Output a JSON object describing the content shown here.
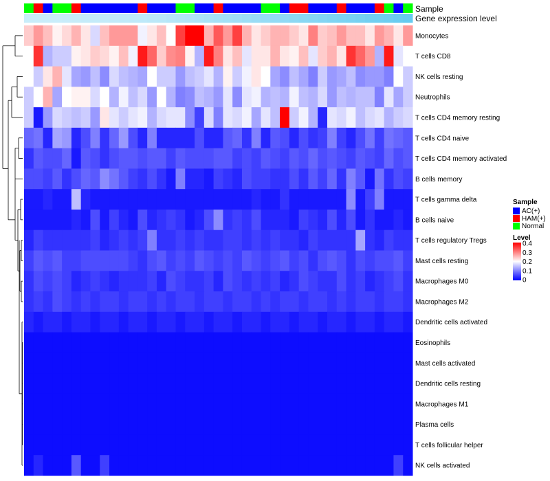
{
  "chart_data": {
    "type": "heatmap",
    "title": "",
    "annotation_tracks": [
      {
        "name": "Sample",
        "categories": [
          "Normal",
          "HAM(+)",
          "AC(+)",
          "Normal",
          "Normal",
          "HAM(+)",
          "AC(+)",
          "AC(+)",
          "AC(+)",
          "AC(+)",
          "AC(+)",
          "AC(+)",
          "HAM(+)",
          "AC(+)",
          "AC(+)",
          "AC(+)",
          "Normal",
          "Normal",
          "AC(+)",
          "AC(+)",
          "HAM(+)",
          "AC(+)",
          "AC(+)",
          "AC(+)",
          "AC(+)",
          "Normal",
          "Normal",
          "AC(+)",
          "HAM(+)",
          "HAM(+)",
          "AC(+)",
          "AC(+)",
          "AC(+)",
          "HAM(+)",
          "AC(+)",
          "AC(+)",
          "AC(+)",
          "HAM(+)",
          "Normal",
          "AC(+)",
          "Normal"
        ]
      },
      {
        "name": "Gene expression level",
        "values": [
          0.1,
          0.1,
          0.1,
          0.1,
          0.11,
          0.12,
          0.13,
          0.14,
          0.15,
          0.16,
          0.17,
          0.18,
          0.19,
          0.2,
          0.22,
          0.25,
          0.28,
          0.3,
          0.32,
          0.35,
          0.38,
          0.4,
          0.42,
          0.45,
          0.48,
          0.5,
          0.52,
          0.55,
          0.58,
          0.6,
          0.62,
          0.65,
          0.68,
          0.7,
          0.72,
          0.75,
          0.78,
          0.8,
          0.82,
          0.85,
          0.88
        ]
      }
    ],
    "rows": [
      "Monocytes",
      "T cells CD8",
      "NK cells resting",
      "Neutrophils",
      "T cells CD4 memory resting",
      "T cells CD4 naive",
      "T cells CD4 memory activated",
      "B cells memory",
      "T cells gamma delta",
      "B cells naive",
      "T cells regulatory  Tregs",
      "Mast cells resting",
      "Macrophages M0",
      "Macrophages M2",
      "Dendritic cells activated",
      "Eosinophils",
      "Mast cells activated",
      "Dendritic cells resting",
      "Macrophages M1",
      "Plasma cells",
      "T cells follicular helper",
      "NK cells activated"
    ],
    "values": [
      [
        0.24,
        0.28,
        0.25,
        0.21,
        0.23,
        0.26,
        0.22,
        0.17,
        0.25,
        0.28,
        0.28,
        0.28,
        0.19,
        0.22,
        0.25,
        0.2,
        0.35,
        0.4,
        0.4,
        0.26,
        0.33,
        0.28,
        0.35,
        0.26,
        0.22,
        0.24,
        0.26,
        0.26,
        0.24,
        0.22,
        0.3,
        0.24,
        0.25,
        0.28,
        0.25,
        0.25,
        0.22,
        0.28,
        0.26,
        0.22,
        0.28
      ],
      [
        0.2,
        0.36,
        0.14,
        0.16,
        0.16,
        0.21,
        0.22,
        0.24,
        0.23,
        0.21,
        0.25,
        0.19,
        0.38,
        0.32,
        0.24,
        0.29,
        0.3,
        0.21,
        0.14,
        0.38,
        0.3,
        0.22,
        0.25,
        0.18,
        0.22,
        0.22,
        0.26,
        0.22,
        0.21,
        0.25,
        0.18,
        0.24,
        0.26,
        0.22,
        0.36,
        0.32,
        0.28,
        0.14,
        0.38,
        0.18,
        0.2
      ],
      [
        0.2,
        0.16,
        0.22,
        0.26,
        0.18,
        0.13,
        0.12,
        0.15,
        0.11,
        0.17,
        0.15,
        0.14,
        0.13,
        0.2,
        0.16,
        0.16,
        0.12,
        0.15,
        0.16,
        0.18,
        0.14,
        0.21,
        0.16,
        0.19,
        0.22,
        0.2,
        0.13,
        0.11,
        0.15,
        0.13,
        0.1,
        0.16,
        0.12,
        0.13,
        0.15,
        0.11,
        0.12,
        0.12,
        0.1,
        0.2,
        0.16
      ],
      [
        0.16,
        0.2,
        0.26,
        0.13,
        0.2,
        0.21,
        0.21,
        0.17,
        0.2,
        0.14,
        0.19,
        0.15,
        0.17,
        0.12,
        0.2,
        0.14,
        0.1,
        0.11,
        0.15,
        0.14,
        0.12,
        0.18,
        0.11,
        0.18,
        0.19,
        0.14,
        0.15,
        0.14,
        0.19,
        0.15,
        0.14,
        0.17,
        0.12,
        0.15,
        0.14,
        0.15,
        0.15,
        0.1,
        0.18,
        0.13,
        0.16
      ],
      [
        0.16,
        0.02,
        0.12,
        0.17,
        0.16,
        0.15,
        0.16,
        0.12,
        0.22,
        0.18,
        0.16,
        0.18,
        0.19,
        0.14,
        0.17,
        0.18,
        0.18,
        0.11,
        0.05,
        0.17,
        0.1,
        0.18,
        0.17,
        0.19,
        0.13,
        0.18,
        0.15,
        0.4,
        0.16,
        0.19,
        0.14,
        0.03,
        0.18,
        0.17,
        0.19,
        0.15,
        0.17,
        0.18,
        0.14,
        0.16,
        0.17
      ],
      [
        0.08,
        0.09,
        0.03,
        0.13,
        0.12,
        0.03,
        0.06,
        0.1,
        0.04,
        0.08,
        0.12,
        0.06,
        0.03,
        0.1,
        0.03,
        0.03,
        0.03,
        0.03,
        0.06,
        0.03,
        0.03,
        0.07,
        0.08,
        0.04,
        0.1,
        0.03,
        0.07,
        0.06,
        0.03,
        0.06,
        0.04,
        0.05,
        0.1,
        0.05,
        0.03,
        0.06,
        0.09,
        0.05,
        0.09,
        0.08,
        0.07
      ],
      [
        0.04,
        0.07,
        0.06,
        0.06,
        0.08,
        0.02,
        0.07,
        0.06,
        0.04,
        0.06,
        0.07,
        0.07,
        0.06,
        0.07,
        0.07,
        0.05,
        0.07,
        0.06,
        0.06,
        0.06,
        0.07,
        0.07,
        0.05,
        0.06,
        0.05,
        0.07,
        0.06,
        0.05,
        0.07,
        0.06,
        0.08,
        0.06,
        0.07,
        0.06,
        0.05,
        0.07,
        0.06,
        0.05,
        0.08,
        0.06,
        0.07
      ],
      [
        0.06,
        0.06,
        0.05,
        0.07,
        0.04,
        0.06,
        0.08,
        0.07,
        0.11,
        0.09,
        0.07,
        0.05,
        0.04,
        0.06,
        0.04,
        0.02,
        0.1,
        0.03,
        0.03,
        0.02,
        0.05,
        0.04,
        0.03,
        0.06,
        0.05,
        0.05,
        0.04,
        0.04,
        0.06,
        0.04,
        0.07,
        0.05,
        0.08,
        0.04,
        0.1,
        0.07,
        0.02,
        0.09,
        0.04,
        0.06,
        0.05
      ],
      [
        0.02,
        0.02,
        0.03,
        0.02,
        0.02,
        0.15,
        0.03,
        0.02,
        0.02,
        0.02,
        0.02,
        0.02,
        0.02,
        0.02,
        0.02,
        0.02,
        0.02,
        0.02,
        0.02,
        0.02,
        0.02,
        0.02,
        0.02,
        0.02,
        0.03,
        0.02,
        0.02,
        0.04,
        0.02,
        0.02,
        0.02,
        0.02,
        0.02,
        0.02,
        0.11,
        0.02,
        0.05,
        0.1,
        0.02,
        0.02,
        0.02
      ],
      [
        0.02,
        0.02,
        0.02,
        0.02,
        0.02,
        0.03,
        0.02,
        0.06,
        0.02,
        0.05,
        0.03,
        0.02,
        0.06,
        0.03,
        0.04,
        0.05,
        0.04,
        0.02,
        0.03,
        0.06,
        0.11,
        0.04,
        0.05,
        0.04,
        0.06,
        0.03,
        0.03,
        0.03,
        0.02,
        0.05,
        0.04,
        0.03,
        0.06,
        0.03,
        0.06,
        0.02,
        0.04,
        0.02,
        0.02,
        0.03,
        0.02
      ],
      [
        0.03,
        0.05,
        0.04,
        0.04,
        0.04,
        0.04,
        0.04,
        0.05,
        0.03,
        0.04,
        0.05,
        0.04,
        0.05,
        0.1,
        0.04,
        0.04,
        0.05,
        0.04,
        0.05,
        0.04,
        0.04,
        0.05,
        0.05,
        0.04,
        0.05,
        0.04,
        0.05,
        0.04,
        0.04,
        0.03,
        0.05,
        0.04,
        0.04,
        0.04,
        0.04,
        0.13,
        0.04,
        0.03,
        0.05,
        0.04,
        0.04
      ],
      [
        0.05,
        0.07,
        0.06,
        0.07,
        0.05,
        0.05,
        0.06,
        0.06,
        0.06,
        0.06,
        0.06,
        0.05,
        0.04,
        0.06,
        0.07,
        0.05,
        0.06,
        0.05,
        0.07,
        0.06,
        0.05,
        0.06,
        0.05,
        0.07,
        0.06,
        0.05,
        0.06,
        0.07,
        0.05,
        0.06,
        0.04,
        0.06,
        0.07,
        0.06,
        0.04,
        0.06,
        0.05,
        0.06,
        0.06,
        0.07,
        0.05
      ],
      [
        0.04,
        0.06,
        0.05,
        0.06,
        0.05,
        0.03,
        0.04,
        0.05,
        0.04,
        0.03,
        0.04,
        0.04,
        0.04,
        0.05,
        0.03,
        0.06,
        0.05,
        0.04,
        0.04,
        0.05,
        0.03,
        0.06,
        0.05,
        0.04,
        0.05,
        0.04,
        0.05,
        0.03,
        0.04,
        0.06,
        0.05,
        0.04,
        0.04,
        0.06,
        0.04,
        0.05,
        0.03,
        0.04,
        0.05,
        0.06,
        0.04
      ],
      [
        0.04,
        0.05,
        0.04,
        0.06,
        0.05,
        0.04,
        0.05,
        0.04,
        0.05,
        0.05,
        0.04,
        0.05,
        0.05,
        0.04,
        0.05,
        0.04,
        0.05,
        0.05,
        0.04,
        0.05,
        0.05,
        0.04,
        0.05,
        0.05,
        0.04,
        0.05,
        0.04,
        0.05,
        0.05,
        0.04,
        0.05,
        0.05,
        0.04,
        0.05,
        0.04,
        0.05,
        0.05,
        0.04,
        0.05,
        0.05,
        0.04
      ],
      [
        0.03,
        0.02,
        0.03,
        0.03,
        0.02,
        0.03,
        0.03,
        0.02,
        0.03,
        0.03,
        0.02,
        0.03,
        0.03,
        0.02,
        0.03,
        0.03,
        0.02,
        0.03,
        0.03,
        0.02,
        0.03,
        0.03,
        0.02,
        0.03,
        0.03,
        0.02,
        0.03,
        0.03,
        0.02,
        0.03,
        0.03,
        0.02,
        0.03,
        0.03,
        0.02,
        0.03,
        0.03,
        0.02,
        0.03,
        0.03,
        0.02
      ],
      [
        0.01,
        0.01,
        0.01,
        0.01,
        0.01,
        0.01,
        0.01,
        0.01,
        0.01,
        0.01,
        0.01,
        0.01,
        0.01,
        0.01,
        0.01,
        0.01,
        0.01,
        0.01,
        0.01,
        0.01,
        0.01,
        0.01,
        0.01,
        0.01,
        0.01,
        0.01,
        0.01,
        0.01,
        0.01,
        0.01,
        0.01,
        0.01,
        0.01,
        0.01,
        0.01,
        0.01,
        0.01,
        0.01,
        0.01,
        0.01,
        0.01
      ],
      [
        0.01,
        0.01,
        0.01,
        0.01,
        0.01,
        0.01,
        0.01,
        0.01,
        0.01,
        0.01,
        0.01,
        0.01,
        0.01,
        0.01,
        0.01,
        0.01,
        0.01,
        0.01,
        0.01,
        0.01,
        0.01,
        0.01,
        0.01,
        0.01,
        0.01,
        0.01,
        0.01,
        0.01,
        0.01,
        0.01,
        0.01,
        0.01,
        0.01,
        0.01,
        0.01,
        0.01,
        0.01,
        0.01,
        0.01,
        0.01,
        0.01
      ],
      [
        0.01,
        0.01,
        0.01,
        0.01,
        0.01,
        0.01,
        0.01,
        0.01,
        0.01,
        0.01,
        0.01,
        0.01,
        0.01,
        0.01,
        0.01,
        0.01,
        0.01,
        0.01,
        0.01,
        0.01,
        0.01,
        0.01,
        0.01,
        0.01,
        0.01,
        0.01,
        0.01,
        0.01,
        0.01,
        0.01,
        0.01,
        0.01,
        0.01,
        0.01,
        0.01,
        0.01,
        0.01,
        0.01,
        0.01,
        0.01,
        0.01
      ],
      [
        0.01,
        0.01,
        0.01,
        0.01,
        0.01,
        0.01,
        0.01,
        0.01,
        0.01,
        0.01,
        0.01,
        0.01,
        0.01,
        0.01,
        0.01,
        0.01,
        0.01,
        0.01,
        0.01,
        0.01,
        0.01,
        0.01,
        0.01,
        0.01,
        0.01,
        0.01,
        0.01,
        0.01,
        0.01,
        0.01,
        0.01,
        0.01,
        0.01,
        0.01,
        0.01,
        0.01,
        0.01,
        0.01,
        0.01,
        0.01,
        0.01
      ],
      [
        0.01,
        0.01,
        0.01,
        0.01,
        0.01,
        0.01,
        0.01,
        0.01,
        0.01,
        0.01,
        0.01,
        0.01,
        0.01,
        0.01,
        0.01,
        0.01,
        0.01,
        0.01,
        0.01,
        0.01,
        0.01,
        0.01,
        0.01,
        0.01,
        0.01,
        0.01,
        0.01,
        0.01,
        0.01,
        0.01,
        0.01,
        0.01,
        0.01,
        0.01,
        0.01,
        0.01,
        0.01,
        0.01,
        0.01,
        0.01,
        0.01
      ],
      [
        0.01,
        0.01,
        0.01,
        0.01,
        0.01,
        0.01,
        0.01,
        0.01,
        0.01,
        0.01,
        0.01,
        0.01,
        0.01,
        0.01,
        0.01,
        0.01,
        0.01,
        0.01,
        0.01,
        0.01,
        0.01,
        0.01,
        0.01,
        0.01,
        0.01,
        0.01,
        0.01,
        0.01,
        0.01,
        0.01,
        0.01,
        0.01,
        0.01,
        0.01,
        0.01,
        0.01,
        0.01,
        0.01,
        0.01,
        0.01,
        0.01
      ],
      [
        0.01,
        0.03,
        0.01,
        0.01,
        0.01,
        0.07,
        0.01,
        0.01,
        0.05,
        0.01,
        0.01,
        0.01,
        0.01,
        0.01,
        0.01,
        0.01,
        0.01,
        0.01,
        0.01,
        0.01,
        0.01,
        0.01,
        0.01,
        0.01,
        0.01,
        0.01,
        0.01,
        0.01,
        0.01,
        0.01,
        0.01,
        0.01,
        0.01,
        0.01,
        0.01,
        0.01,
        0.01,
        0.01,
        0.01,
        0.05,
        0.01
      ]
    ],
    "color_scale": {
      "min": 0,
      "mid": 0.2,
      "max": 0.4,
      "low": "#0000ff",
      "midColor": "#ffffff",
      "high": "#ff0000"
    },
    "sample_colors": {
      "AC(+)": "#0000ff",
      "HAM(+)": "#ff0000",
      "Normal": "#00ff00"
    },
    "expression_color_range": [
      "#d6f1fb",
      "#56c6ee"
    ],
    "legend": {
      "sample_title": "Sample",
      "sample_items": [
        "AC(+)",
        "HAM(+)",
        "Normal"
      ],
      "level_title": "Level",
      "level_ticks": [
        "0.4",
        "0.3",
        "0.2",
        "0.1",
        "0"
      ]
    },
    "track_labels": [
      "Sample",
      "Gene expression level"
    ],
    "dendrogram": "row clustering tree on left"
  }
}
